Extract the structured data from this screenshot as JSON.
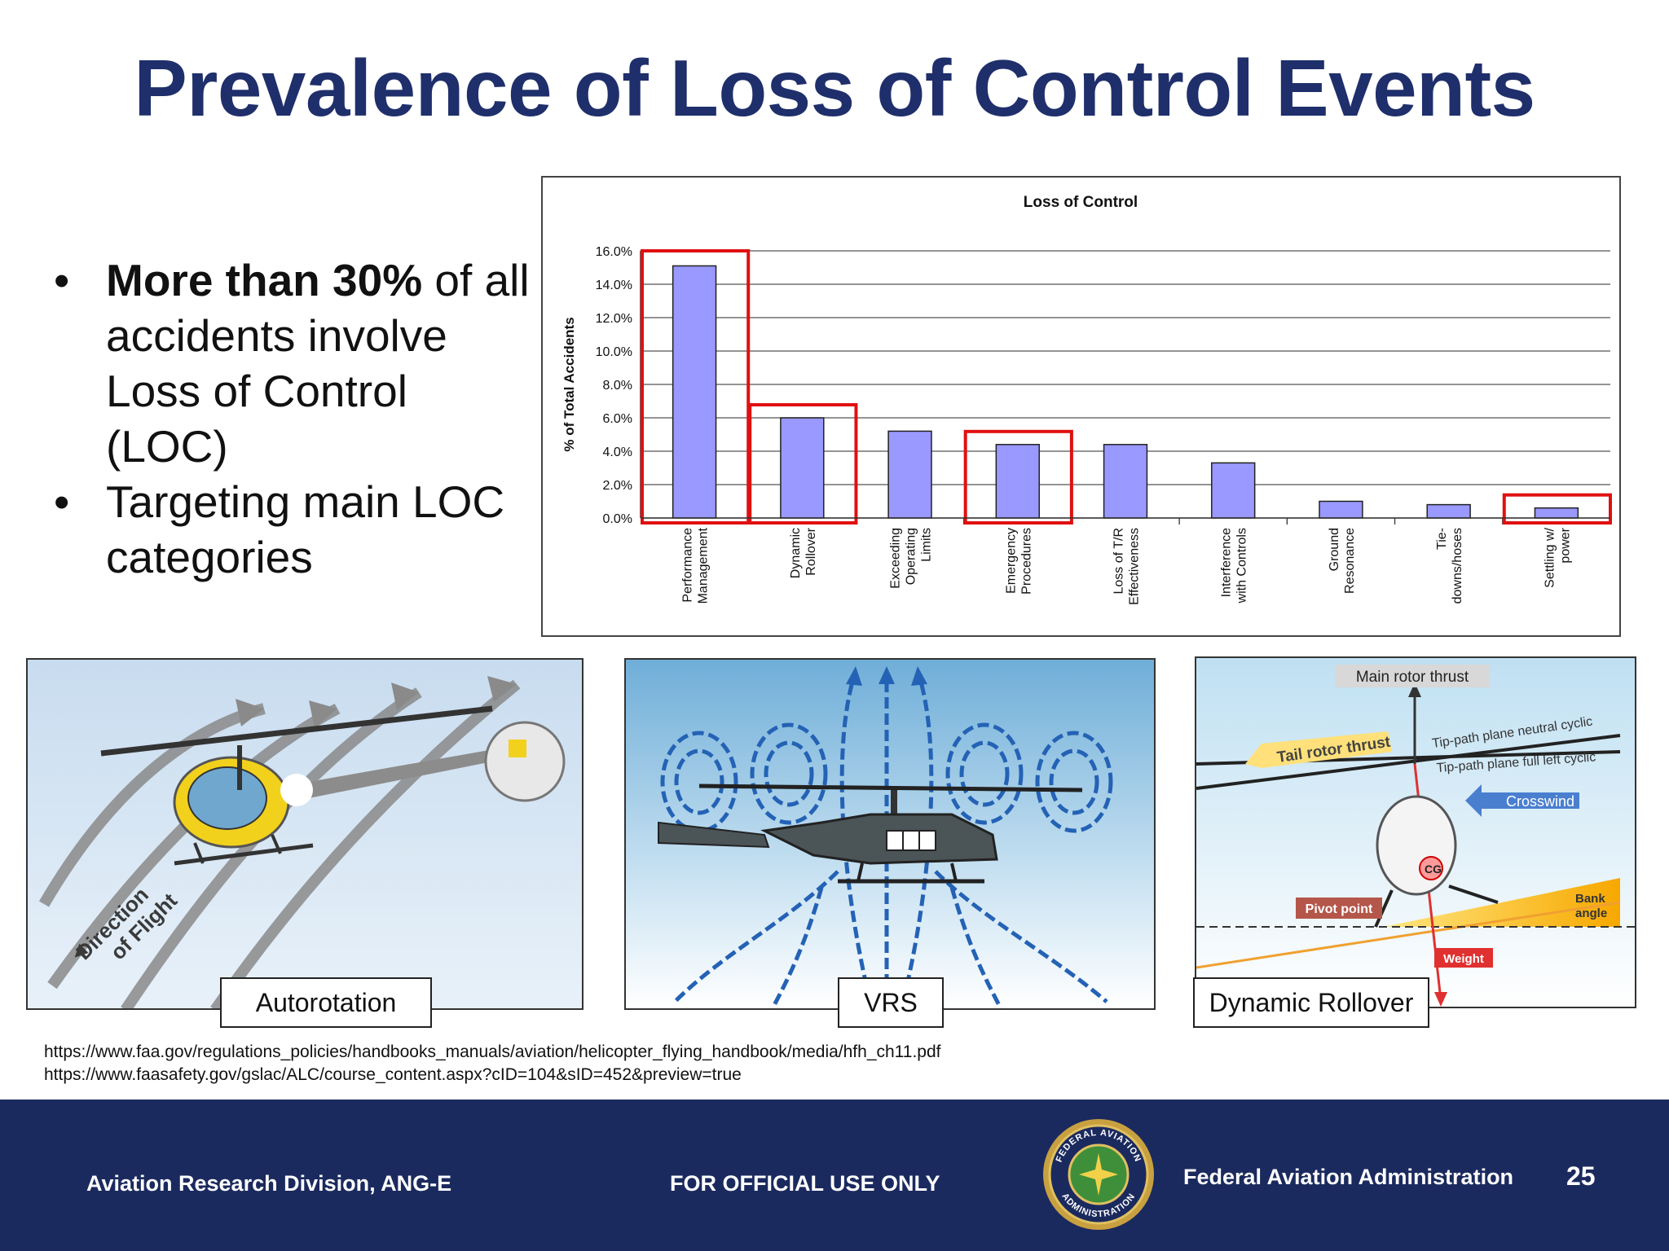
{
  "slide": {
    "title": "Prevalence of Loss of Control Events",
    "bullets": [
      {
        "bold": "More than 30%",
        "text_1": " of all accidents involve Loss of Control (LOC)"
      },
      {
        "bold": "",
        "text_1": "Targeting main LOC categories"
      }
    ],
    "bullet_glyph": "•"
  },
  "chart_data": {
    "type": "bar",
    "title": "Loss of Control",
    "ylabel": "% of Total Accidents",
    "xlabel": "",
    "ylim": [
      0,
      16
    ],
    "yticks": [
      "0.0%",
      "2.0%",
      "4.0%",
      "6.0%",
      "8.0%",
      "10.0%",
      "12.0%",
      "14.0%",
      "16.0%"
    ],
    "categories": [
      [
        "Performance",
        "Management"
      ],
      [
        "Dynamic",
        "Rollover"
      ],
      [
        "Exceeding",
        "Operating",
        "Limits"
      ],
      [
        "Emergency",
        "Procedures"
      ],
      [
        "Loss of T/R",
        "Effectiveness"
      ],
      [
        "Interference",
        "with Controls"
      ],
      [
        "Ground",
        "Resonance"
      ],
      [
        "Tie-",
        "downs/hoses"
      ],
      [
        "Settling w/",
        "power"
      ]
    ],
    "values": [
      15.1,
      6.0,
      5.2,
      4.4,
      4.4,
      3.3,
      1.0,
      0.8,
      0.6
    ],
    "highlighted": [
      0,
      1,
      3,
      8
    ],
    "grid": true,
    "bar_color": "#9999ff",
    "highlight_color": "#e01010"
  },
  "panels": {
    "autorotation": {
      "caption": "Autorotation",
      "direction_label_1": "Direction",
      "direction_label_2": "of Flight"
    },
    "vrs": {
      "caption": "VRS"
    },
    "rollover": {
      "caption": "Dynamic Rollover",
      "labels": {
        "main_rotor_thrust": "Main rotor thrust",
        "tail_rotor_thrust": "Tail rotor thrust",
        "tip_neutral": "Tip-path plane neutral cyclic",
        "tip_left": "Tip-path plane full left cyclic",
        "crosswind": "Crosswind",
        "cg": "CG",
        "pivot_point": "Pivot point",
        "bank_angle_1": "Bank",
        "bank_angle_2": "angle",
        "weight": "Weight"
      }
    }
  },
  "sources": [
    "https://www.faa.gov/regulations_policies/handbooks_manuals/aviation/helicopter_flying_handbook/media/hfh_ch11.pdf",
    "https://www.faasafety.gov/gslac/ALC/course_content.aspx?cID=104&sID=452&preview=true"
  ],
  "footer": {
    "left": "Aviation Research Division, ANG-E",
    "center": "FOR OFFICIAL USE ONLY",
    "right": "Federal Aviation Administration",
    "page_number": "25",
    "seal_top": "FEDERAL AVIATION",
    "seal_bottom": "ADMINISTRATION"
  },
  "colors": {
    "title": "#1f2f6b",
    "footer_bg": "#1b2a5e"
  }
}
